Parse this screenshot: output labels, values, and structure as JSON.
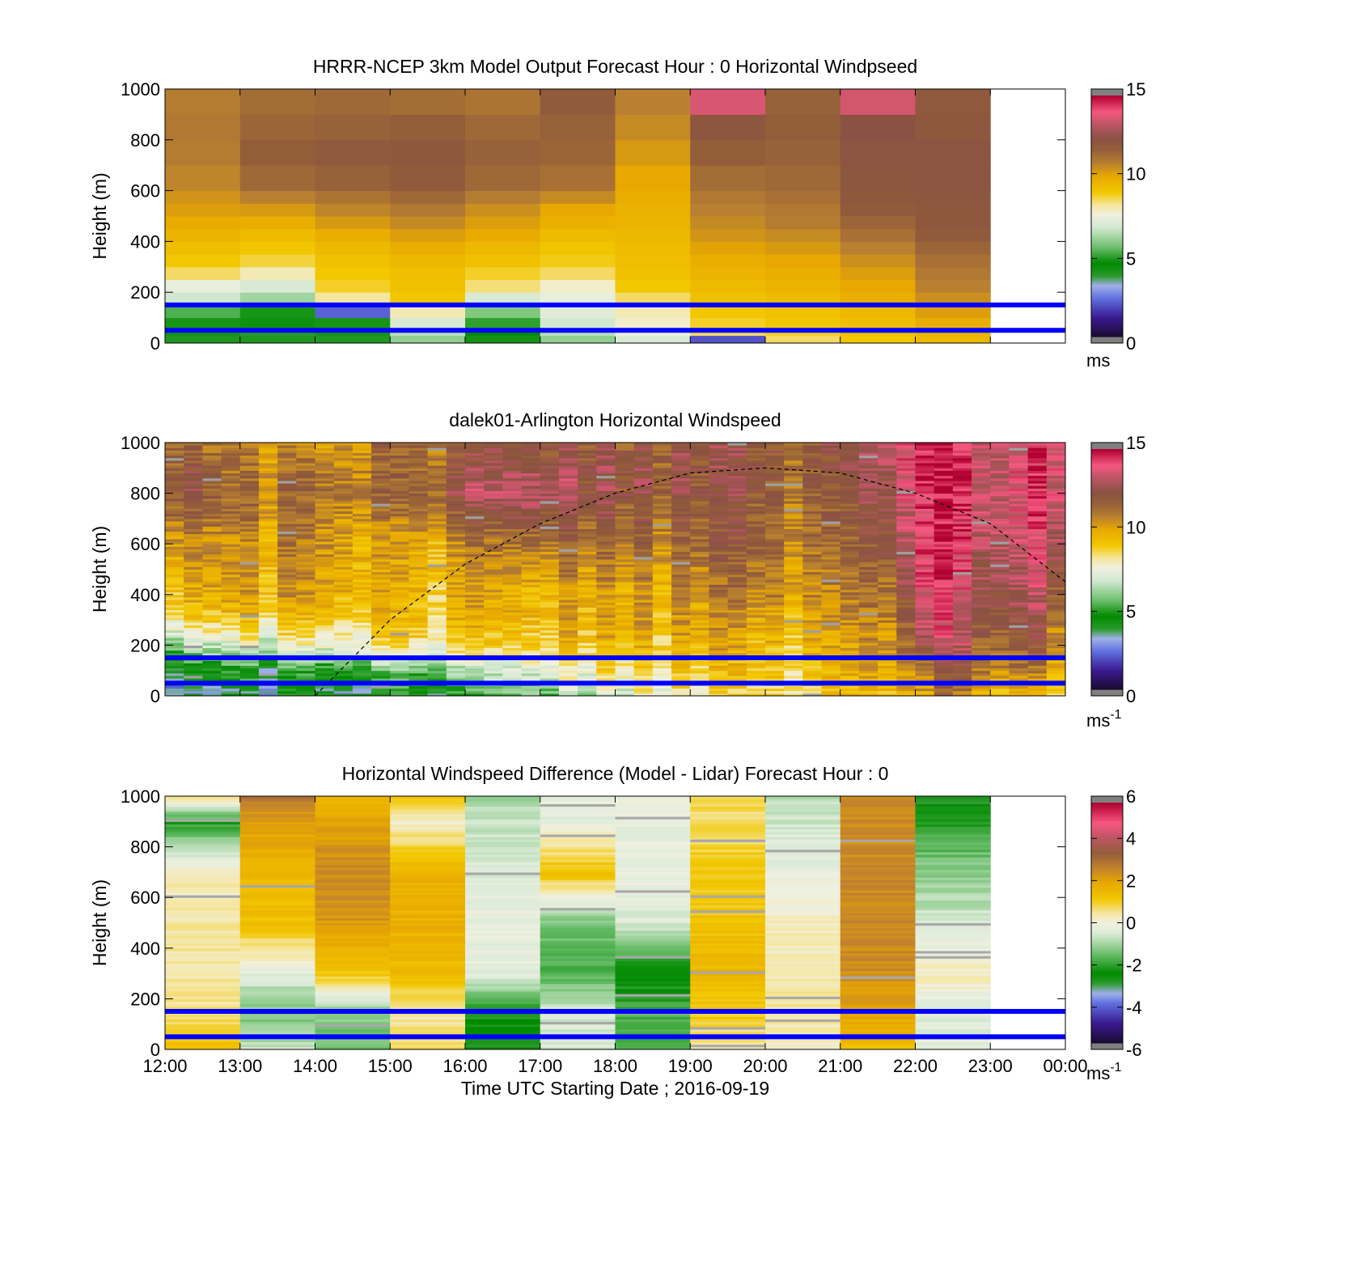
{
  "chart_data": [
    {
      "type": "heatmap",
      "title": "HRRR-NCEP 3km Model Output   Forecast Hour : 0 Horizontal Windpseed",
      "ylabel": "Height (m)",
      "xlabel": "",
      "xlim": [
        "12:00",
        "00:00"
      ],
      "ylim": [
        0,
        1000
      ],
      "yticks": [
        "0",
        "200",
        "400",
        "600",
        "800",
        "1000"
      ],
      "xticks": [
        "12:00",
        "13:00",
        "14:00",
        "15:00",
        "16:00",
        "17:00",
        "18:00",
        "19:00",
        "20:00",
        "21:00",
        "22:00",
        "23:00",
        "00:00"
      ],
      "show_xtick_labels": false,
      "colorbar": {
        "palette": "wind",
        "min": 0,
        "max": 15,
        "ticks": [
          "0",
          "5",
          "10",
          "15"
        ],
        "unit_base": "ms",
        "unit_sup": ""
      },
      "reference_lines": {
        "heights": [
          50,
          150
        ],
        "color": "#0000ff"
      },
      "columns_start_hour": 12,
      "rows_top": [
        30,
        60,
        100,
        150,
        200,
        250,
        300,
        350,
        400,
        450,
        500,
        550,
        600,
        700,
        800,
        900,
        1000
      ],
      "rows_values": [
        [
          4.0,
          4.0,
          4.0,
          6.0,
          4.2,
          6.0,
          7.0,
          2.0,
          8.5,
          9.0,
          9.5
        ],
        [
          4.2,
          3.8,
          4.2,
          6.5,
          4.5,
          6.5,
          7.5,
          8.5,
          8.8,
          9.2,
          9.6
        ],
        [
          4.8,
          4.3,
          4.8,
          7.0,
          5.0,
          6.8,
          7.8,
          8.8,
          9.0,
          9.3,
          9.8
        ],
        [
          5.3,
          4.8,
          2.2,
          8.0,
          5.8,
          7.2,
          8.0,
          9.0,
          9.2,
          9.5,
          10.2
        ],
        [
          6.8,
          6.2,
          8.2,
          9.0,
          7.0,
          7.4,
          8.5,
          9.2,
          9.4,
          9.8,
          10.5
        ],
        [
          7.4,
          7.0,
          8.8,
          9.2,
          8.4,
          7.8,
          9.0,
          9.4,
          9.6,
          10.0,
          10.8
        ],
        [
          8.5,
          8.0,
          9.0,
          9.3,
          8.8,
          8.5,
          9.2,
          9.6,
          9.8,
          10.2,
          11.0
        ],
        [
          9.0,
          8.7,
          9.2,
          9.5,
          9.2,
          8.9,
          9.3,
          9.8,
          10.0,
          10.5,
          11.2
        ],
        [
          9.3,
          9.0,
          9.5,
          9.8,
          9.5,
          9.1,
          9.4,
          10.1,
          10.3,
          10.8,
          11.5
        ],
        [
          9.6,
          9.4,
          9.8,
          10.2,
          9.9,
          9.4,
          9.5,
          10.4,
          10.6,
          11.2,
          11.8
        ],
        [
          9.9,
          9.8,
          10.3,
          10.6,
          10.2,
          9.7,
          9.6,
          10.6,
          10.9,
          11.5,
          12.0
        ],
        [
          10.2,
          10.3,
          10.7,
          11.0,
          10.5,
          10.0,
          9.7,
          10.8,
          11.0,
          11.8,
          12.0
        ],
        [
          10.4,
          10.8,
          11.1,
          11.4,
          10.9,
          10.6,
          9.8,
          11.0,
          11.2,
          12.0,
          12.1
        ],
        [
          10.7,
          11.4,
          11.6,
          11.8,
          11.4,
          11.2,
          10.0,
          11.3,
          11.4,
          12.1,
          12.2
        ],
        [
          10.9,
          11.7,
          11.9,
          12.0,
          11.6,
          11.5,
          10.3,
          11.7,
          11.6,
          12.2,
          12.2
        ],
        [
          11.0,
          11.5,
          11.6,
          11.7,
          11.4,
          11.6,
          10.6,
          12.1,
          11.7,
          12.3,
          12.0
        ],
        [
          10.9,
          11.3,
          11.4,
          11.3,
          11.1,
          11.8,
          10.8,
          13.6,
          11.6,
          13.5,
          11.9
        ]
      ]
    },
    {
      "type": "heatmap",
      "title": "dalek01-Arlington  Horizontal Windspeed",
      "ylabel": "Height (m)",
      "xlabel": "",
      "xlim": [
        "12:00",
        "00:00"
      ],
      "ylim": [
        0,
        1000
      ],
      "yticks": [
        "0",
        "200",
        "400",
        "600",
        "800",
        "1000"
      ],
      "xticks": [
        "12:00",
        "13:00",
        "14:00",
        "15:00",
        "16:00",
        "17:00",
        "18:00",
        "19:00",
        "20:00",
        "21:00",
        "22:00",
        "23:00",
        "00:00"
      ],
      "show_xtick_labels": false,
      "colorbar": {
        "palette": "wind",
        "min": 0,
        "max": 15,
        "ticks": [
          "0",
          "5",
          "10",
          "15"
        ],
        "unit_base": "ms",
        "unit_sup": "-1"
      },
      "reference_lines": {
        "heights": [
          50,
          150
        ],
        "color": "#0000ff"
      },
      "curve": {
        "style": "dashed",
        "points": [
          [
            "14:00",
            0
          ],
          [
            "15:00",
            300
          ],
          [
            "16:00",
            520
          ],
          [
            "17:00",
            680
          ],
          [
            "18:00",
            800
          ],
          [
            "19:00",
            880
          ],
          [
            "20:00",
            900
          ],
          [
            "21:00",
            880
          ],
          [
            "22:00",
            800
          ],
          [
            "23:00",
            680
          ],
          [
            "00:00",
            450
          ]
        ]
      },
      "profile_hours": [
        12.2,
        13.0,
        14.0,
        15.0,
        16.0,
        17.0,
        18.0,
        19.0,
        20.0,
        21.0,
        21.8,
        22.1,
        22.4,
        22.8,
        23.2,
        23.7,
        24.0
      ],
      "profile_heights": [
        0,
        100,
        200,
        300,
        400,
        600,
        800,
        1000
      ],
      "profile_values": [
        [
          3.0,
          4.0,
          6.0,
          8.5,
          9.5,
          10.5,
          12.5,
          11.5
        ],
        [
          3.5,
          4.5,
          7.0,
          9.0,
          9.8,
          10.2,
          11.0,
          10.5
        ],
        [
          3.5,
          4.5,
          7.5,
          9.0,
          10.0,
          10.6,
          11.2,
          10.3
        ],
        [
          4.0,
          5.0,
          8.0,
          9.0,
          9.3,
          9.5,
          10.8,
          11.0
        ],
        [
          4.5,
          6.0,
          8.5,
          9.4,
          9.6,
          10.4,
          12.5,
          11.5
        ],
        [
          6.0,
          7.5,
          9.0,
          9.6,
          9.8,
          11.5,
          13.5,
          12.5
        ],
        [
          6.8,
          8.0,
          9.2,
          9.5,
          9.8,
          10.8,
          12.0,
          11.8
        ],
        [
          7.5,
          8.5,
          9.2,
          9.7,
          9.9,
          11.0,
          11.8,
          11.8
        ],
        [
          8.5,
          9.0,
          9.5,
          10.0,
          11.0,
          11.5,
          11.8,
          12.0
        ],
        [
          8.8,
          9.2,
          9.5,
          9.9,
          10.2,
          10.8,
          11.5,
          11.8
        ],
        [
          9.0,
          9.5,
          10.0,
          10.5,
          11.0,
          12.0,
          12.5,
          13.0
        ],
        [
          9.5,
          10.5,
          12.0,
          13.0,
          13.5,
          13.8,
          14.0,
          14.2
        ],
        [
          10.5,
          12.0,
          13.0,
          13.5,
          13.8,
          14.0,
          14.2,
          14.5
        ],
        [
          10.0,
          11.5,
          12.0,
          12.5,
          13.0,
          13.5,
          13.8,
          14.0
        ],
        [
          9.5,
          11.0,
          12.0,
          12.5,
          13.0,
          13.5,
          13.8,
          13.5
        ],
        [
          9.0,
          10.5,
          11.5,
          12.0,
          12.8,
          13.5,
          14.0,
          14.0
        ],
        [
          9.0,
          10.0,
          11.0,
          11.5,
          12.5,
          13.5,
          14.5,
          14.5
        ]
      ]
    },
    {
      "type": "heatmap",
      "title": "Horizontal Windspeed Difference (Model - Lidar) Forecast Hour : 0",
      "ylabel": "Height (m)",
      "xlabel": "Time UTC  Starting Date ; 2016-09-19",
      "xlim": [
        "12:00",
        "00:00"
      ],
      "ylim": [
        0,
        1000
      ],
      "yticks": [
        "0",
        "200",
        "400",
        "600",
        "800",
        "1000"
      ],
      "xticks": [
        "12:00",
        "13:00",
        "14:00",
        "15:00",
        "16:00",
        "17:00",
        "18:00",
        "19:00",
        "20:00",
        "21:00",
        "22:00",
        "23:00",
        "00:00"
      ],
      "show_xtick_labels": true,
      "colorbar": {
        "palette": "diff",
        "min": -6,
        "max": 6,
        "ticks": [
          "-6",
          "-4",
          "-2",
          "0",
          "2",
          "4",
          "6"
        ],
        "unit_base": "ms",
        "unit_sup": "-1"
      },
      "reference_lines": {
        "heights": [
          50,
          150
        ],
        "color": "#0000ff"
      },
      "columns_start_hour": 12,
      "profile_heights": [
        0,
        150,
        300,
        500,
        700,
        900,
        1000
      ],
      "column_profiles": [
        [
          1.5,
          0.6,
          0.5,
          0.4,
          0.3,
          -2.2,
          0.8
        ],
        [
          -0.7,
          -1.4,
          -0.4,
          1.4,
          1.6,
          2.2,
          3.0
        ],
        [
          -1.6,
          -1.2,
          1.2,
          2.3,
          2.6,
          2.0,
          1.7
        ],
        [
          0.8,
          0.4,
          1.5,
          1.8,
          1.7,
          0.2,
          1.3
        ],
        [
          -2.8,
          -2.3,
          -0.3,
          -0.2,
          -0.5,
          -0.8,
          -1.0
        ],
        [
          -0.5,
          -0.6,
          -1.8,
          -1.4,
          1.4,
          -0.3,
          -0.2
        ],
        [
          -1.8,
          -1.8,
          -2.6,
          -0.4,
          -0.3,
          -0.2,
          -0.1
        ],
        [
          0.4,
          1.2,
          1.6,
          1.3,
          1.1,
          0.8,
          0.8
        ],
        [
          0.3,
          0.4,
          0.4,
          0.2,
          -0.2,
          -0.6,
          -0.8
        ],
        [
          1.5,
          2.1,
          2.5,
          2.6,
          2.6,
          2.6,
          2.5
        ],
        [
          -0.2,
          -0.5,
          0.3,
          -0.6,
          -1.2,
          -2.2,
          -3.0
        ]
      ]
    }
  ]
}
